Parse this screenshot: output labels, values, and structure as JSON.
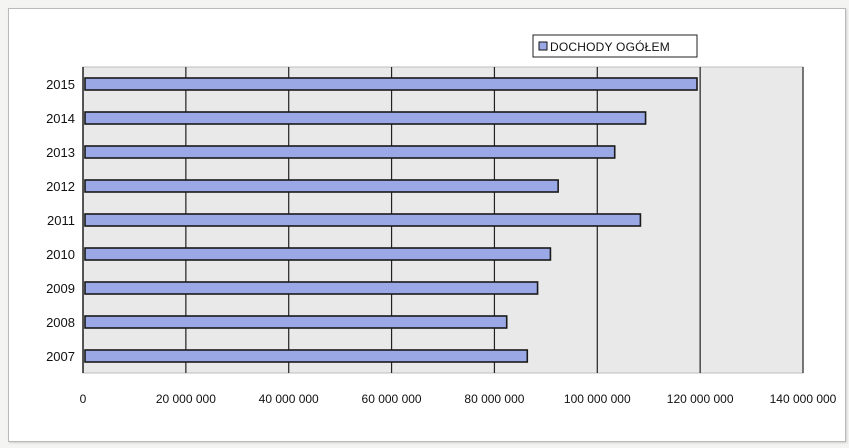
{
  "chart_data": {
    "type": "bar",
    "orientation": "horizontal",
    "categories": [
      "2007",
      "2008",
      "2009",
      "2010",
      "2011",
      "2012",
      "2013",
      "2014",
      "2015"
    ],
    "series": [
      {
        "name": "DOCHODY OGÓŁEM",
        "values": [
          86000000,
          82000000,
          88000000,
          90500000,
          108000000,
          92000000,
          103000000,
          109000000,
          119000000
        ]
      }
    ],
    "xlim": [
      0,
      140000000
    ],
    "x_ticks": [
      0,
      20000000,
      40000000,
      60000000,
      80000000,
      100000000,
      120000000,
      140000000
    ],
    "x_tick_labels": [
      "0",
      "20 000 000",
      "40 000 000",
      "60 000 000",
      "80 000 000",
      "100 000 000",
      "120 000 000",
      "140 000 000"
    ],
    "grid": "vertical",
    "legend": "top-right",
    "colors": {
      "bar": "#9aa8e6",
      "bar_edge": "#1a1a1a",
      "plot_bg": "#e9e9ea",
      "grid": "#222222"
    }
  }
}
